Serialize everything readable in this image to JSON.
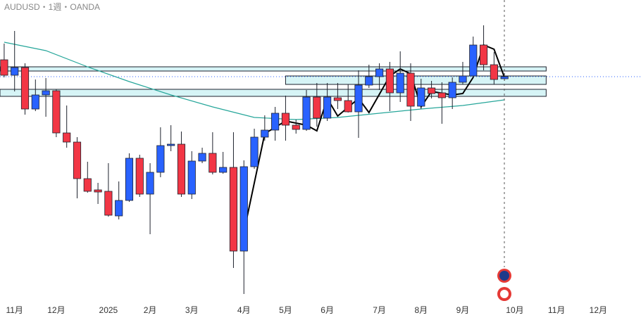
{
  "chart_data": {
    "type": "candlestick",
    "title": "AUDUSD・1週・OANDA",
    "up_color": "#2962ff",
    "down_color": "#f23645",
    "border_color": "#1e222d",
    "zone_color": "#d6f4f6",
    "xlim": [
      -0.4,
      61.1
    ],
    "ylim": [
      0.594,
      0.68
    ],
    "xticks": [
      {
        "value": 1,
        "label": "11月"
      },
      {
        "value": 5,
        "label": "12月"
      },
      {
        "value": 10,
        "label": "2025"
      },
      {
        "value": 14,
        "label": "2月"
      },
      {
        "value": 18,
        "label": "3月"
      },
      {
        "value": 23,
        "label": "4月"
      },
      {
        "value": 27,
        "label": "5月"
      },
      {
        "value": 31,
        "label": "6月"
      },
      {
        "value": 36,
        "label": "7月"
      },
      {
        "value": 40,
        "label": "8月"
      },
      {
        "value": 44,
        "label": "9月"
      },
      {
        "value": 49,
        "label": "10月"
      },
      {
        "value": 53,
        "label": "11月"
      },
      {
        "value": 57,
        "label": "12月"
      }
    ],
    "candles": [
      [
        0.663,
        0.6676,
        0.658,
        0.6586
      ],
      [
        0.6586,
        0.6712,
        0.654,
        0.6608
      ],
      [
        0.6608,
        0.662,
        0.6474,
        0.649
      ],
      [
        0.649,
        0.6574,
        0.6484,
        0.653
      ],
      [
        0.653,
        0.6578,
        0.6468,
        0.6542
      ],
      [
        0.6542,
        0.6546,
        0.641,
        0.6422
      ],
      [
        0.6422,
        0.65,
        0.638,
        0.6396
      ],
      [
        0.6396,
        0.641,
        0.6236,
        0.6292
      ],
      [
        0.6292,
        0.634,
        0.6252,
        0.6256
      ],
      [
        0.626,
        0.628,
        0.622,
        0.6254
      ],
      [
        0.6256,
        0.6336,
        0.6184,
        0.6188
      ],
      [
        0.6186,
        0.6284,
        0.6176,
        0.623
      ],
      [
        0.623,
        0.6364,
        0.6226,
        0.635
      ],
      [
        0.635,
        0.636,
        0.624,
        0.6248
      ],
      [
        0.6248,
        0.6336,
        0.6134,
        0.631
      ],
      [
        0.631,
        0.6438,
        0.6296,
        0.6386
      ],
      [
        0.6386,
        0.6444,
        0.637,
        0.639
      ],
      [
        0.639,
        0.6426,
        0.624,
        0.6248
      ],
      [
        0.6248,
        0.637,
        0.6234,
        0.6342
      ],
      [
        0.6342,
        0.638,
        0.6336,
        0.6364
      ],
      [
        0.6364,
        0.6424,
        0.6304,
        0.631
      ],
      [
        0.631,
        0.6368,
        0.6306,
        0.6324
      ],
      [
        0.6324,
        0.6424,
        0.6038,
        0.6086
      ],
      [
        0.6086,
        0.6344,
        0.5964,
        0.6326
      ],
      [
        0.6326,
        0.6434,
        0.632,
        0.641
      ],
      [
        0.641,
        0.6472,
        0.64,
        0.643
      ],
      [
        0.643,
        0.6496,
        0.64,
        0.6478
      ],
      [
        0.6478,
        0.6528,
        0.64,
        0.6444
      ],
      [
        0.6444,
        0.646,
        0.642,
        0.6432
      ],
      [
        0.6432,
        0.6544,
        0.6428,
        0.6524
      ],
      [
        0.6524,
        0.6564,
        0.644,
        0.6464
      ],
      [
        0.6464,
        0.6564,
        0.6456,
        0.6524
      ],
      [
        0.6522,
        0.6564,
        0.649,
        0.6514
      ],
      [
        0.6514,
        0.656,
        0.648,
        0.6482
      ],
      [
        0.6482,
        0.66,
        0.6408,
        0.6558
      ],
      [
        0.6558,
        0.6616,
        0.655,
        0.6582
      ],
      [
        0.6582,
        0.662,
        0.6544,
        0.6604
      ],
      [
        0.6604,
        0.6624,
        0.6484,
        0.6536
      ],
      [
        0.6536,
        0.6654,
        0.651,
        0.6592
      ],
      [
        0.6592,
        0.662,
        0.6456,
        0.6498
      ],
      [
        0.6498,
        0.6576,
        0.649,
        0.655
      ],
      [
        0.655,
        0.657,
        0.652,
        0.6534
      ],
      [
        0.6536,
        0.6566,
        0.6448,
        0.6522
      ],
      [
        0.6522,
        0.658,
        0.649,
        0.6566
      ],
      [
        0.6566,
        0.6624,
        0.656,
        0.6584
      ],
      [
        0.6584,
        0.6696,
        0.658,
        0.6672
      ],
      [
        0.6672,
        0.6728,
        0.66,
        0.6616
      ],
      [
        0.6616,
        0.6652,
        0.656,
        0.6574
      ],
      [
        0.6576,
        0.6592,
        0.657,
        0.6582
      ]
    ],
    "series": [
      {
        "color": "#26a69a",
        "x": [
          0,
          4,
          8,
          12,
          16,
          20,
          24,
          28,
          32,
          36,
          40,
          44,
          48
        ],
        "values": [
          0.668,
          0.6656,
          0.661,
          0.6568,
          0.653,
          0.6496,
          0.6466,
          0.646,
          0.6466,
          0.6478,
          0.649,
          0.65,
          0.6516
        ]
      },
      {
        "color": "#000000",
        "x": [
          23,
          25,
          27,
          29,
          30,
          31,
          32,
          34,
          35,
          37,
          38,
          39,
          40,
          41,
          43,
          44,
          45,
          46,
          47,
          48
        ],
        "values": [
          0.614,
          0.642,
          0.6456,
          0.6444,
          0.6428,
          0.652,
          0.647,
          0.652,
          0.648,
          0.6584,
          0.6604,
          0.659,
          0.6496,
          0.654,
          0.653,
          0.6534,
          0.658,
          0.6672,
          0.666,
          0.658
        ]
      }
    ],
    "zones": [
      {
        "x": [
          -0.4,
          52
        ],
        "y": [
          0.661,
          0.6598
        ]
      },
      {
        "x": [
          27,
          52
        ],
        "y": [
          0.6584,
          0.656
        ]
      },
      {
        "x": [
          -0.4,
          52
        ],
        "y": [
          0.6546,
          0.6526
        ]
      }
    ]
  }
}
